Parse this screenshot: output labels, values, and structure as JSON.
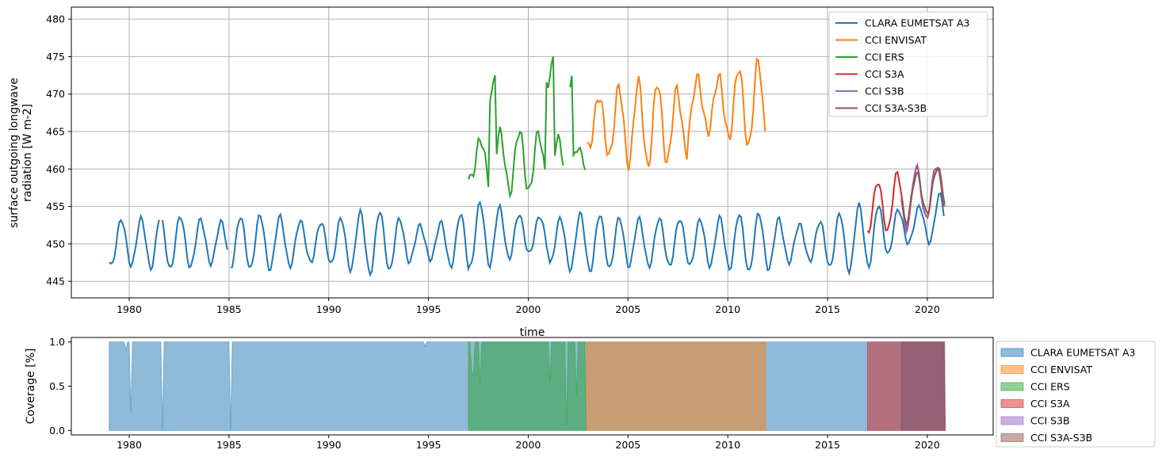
{
  "chart_data": [
    {
      "type": "line",
      "xlabel": "time",
      "ylabel_lines": [
        "surface outgoing longwave",
        "radiation [W m-2]"
      ],
      "xlim": [
        1977.1,
        2023.3
      ],
      "ylim": [
        442.8,
        481.6
      ],
      "xticks": [
        1980,
        1985,
        1990,
        1995,
        2000,
        2005,
        2010,
        2015,
        2020
      ],
      "yticks": [
        445,
        450,
        455,
        460,
        465,
        470,
        475,
        480
      ],
      "grid": true,
      "legend_position": "top-right",
      "series": [
        {
          "name": "CLARA EUMETSAT A3",
          "color": "#1f77b4"
        },
        {
          "name": "CCI ENVISAT",
          "color": "#ff7f0e"
        },
        {
          "name": "CCI ERS",
          "color": "#2ca02c"
        },
        {
          "name": "CCI S3A",
          "color": "#d62728"
        },
        {
          "name": "CCI S3B",
          "color": "#9467bd"
        },
        {
          "name": "CCI S3A-S3B",
          "color": "#8c564b"
        }
      ]
    },
    {
      "type": "area",
      "ylabel": "Coverage [%]",
      "xlim": [
        1977.1,
        2023.3
      ],
      "ylim": [
        -0.05,
        1.05
      ],
      "xticks": [
        1980,
        1985,
        1990,
        1995,
        2000,
        2005,
        2010,
        2015,
        2020
      ],
      "yticks": [
        "0.0",
        "0.5",
        "1.0"
      ],
      "legend_position": "outside-right",
      "series": [
        {
          "name": "CLARA EUMETSAT A3",
          "color": "#1f77b4",
          "x_range": [
            1979.0,
            2020.9
          ],
          "gaps": [
            [
              1981.6,
              1981.7
            ],
            [
              1985.0,
              1985.1
            ]
          ],
          "dips": [
            [
              1979.8,
              0.9
            ],
            [
              1980.1,
              0.2
            ],
            [
              1994.8,
              0.95
            ]
          ]
        },
        {
          "name": "CCI ENVISAT",
          "color": "#ff7f0e",
          "x_range": [
            2002.9,
            2011.9
          ]
        },
        {
          "name": "CCI ERS",
          "color": "#2ca02c",
          "x_range": [
            1997.0,
            2002.9
          ],
          "dips": [
            [
              1997.2,
              0.65
            ],
            [
              1997.6,
              0.5
            ],
            [
              2001.1,
              0.55
            ],
            [
              2001.9,
              0.05
            ],
            [
              2002.4,
              0.4
            ]
          ]
        },
        {
          "name": "CCI S3A",
          "color": "#d62728",
          "x_range": [
            2017.0,
            2020.9
          ]
        },
        {
          "name": "CCI S3B",
          "color": "#9467bd",
          "x_range": [
            2018.7,
            2020.9
          ]
        },
        {
          "name": "CCI S3A-S3B",
          "color": "#8c564b",
          "x_range": [
            2018.7,
            2020.9
          ]
        }
      ]
    }
  ]
}
